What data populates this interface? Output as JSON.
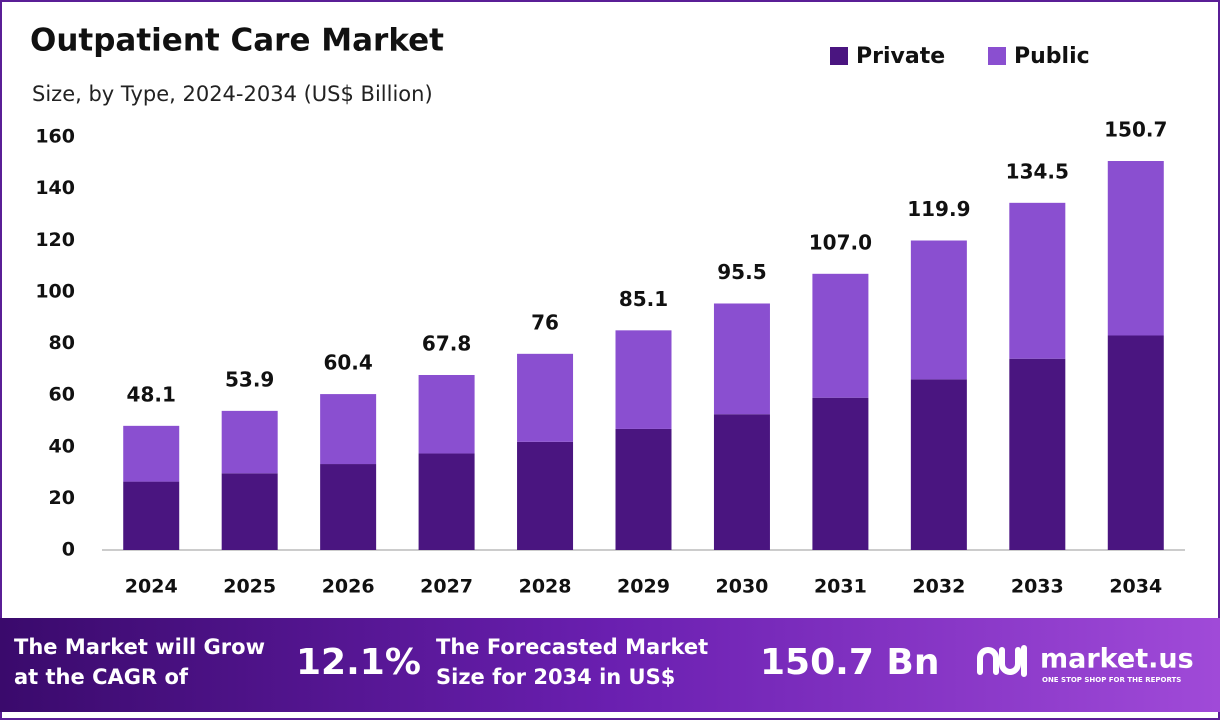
{
  "chart_data": {
    "type": "stacked-bar",
    "title": "Outpatient Care Market",
    "subtitle": "Size, by Type, 2024-2034 (US$ Billion)",
    "categories": [
      "2024",
      "2025",
      "2026",
      "2027",
      "2028",
      "2029",
      "2030",
      "2031",
      "2032",
      "2033",
      "2034"
    ],
    "series": [
      {
        "name": "Private",
        "color": "#4a1580",
        "values": [
          26.5,
          29.7,
          33.3,
          37.4,
          41.9,
          46.9,
          52.6,
          59.0,
          66.1,
          74.1,
          83.1
        ]
      },
      {
        "name": "Public",
        "color": "#8a4fd0",
        "values": [
          21.6,
          24.2,
          27.1,
          30.4,
          34.1,
          38.2,
          42.9,
          48.0,
          53.8,
          60.4,
          67.6
        ]
      }
    ],
    "totals": [
      48.1,
      53.9,
      60.4,
      67.8,
      76.0,
      85.1,
      95.5,
      {
        "value": 107,
        "label": "107.0"
      },
      119.9,
      134.5,
      150.7
    ],
    "ylim": [
      0,
      160
    ],
    "yticks": [
      0,
      20,
      40,
      60,
      80,
      100,
      120,
      140,
      160
    ],
    "grid": false,
    "legend": "top-right"
  },
  "footer": {
    "cagr_text": [
      "The Market will Grow",
      "at the CAGR of"
    ],
    "cagr": "12.1%",
    "forecast_text": [
      "The Forecasted Market",
      "Size for 2034 in US$"
    ],
    "forecast": "150.7 Bn",
    "brand": "market.us",
    "tagline": "ONE STOP SHOP FOR THE REPORTS"
  }
}
